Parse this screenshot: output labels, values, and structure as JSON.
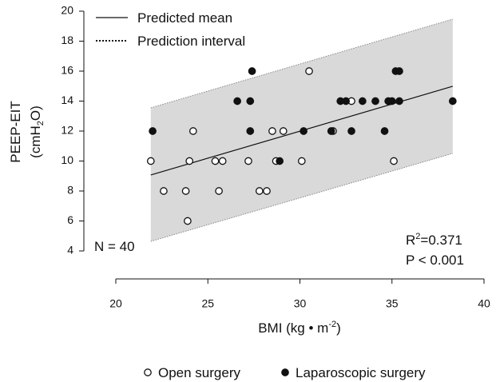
{
  "chart_data": {
    "type": "scatter",
    "y_label": [
      "PEEP-EIT",
      "(cmH",
      "2",
      "O)"
    ],
    "x_label": [
      "BMI (kg • m",
      "-2",
      ")"
    ],
    "annotations": {
      "n": "N = 40",
      "r2": [
        "R",
        "2",
        "=0.371"
      ],
      "p": "P < 0.001"
    },
    "xlim": [
      20,
      40
    ],
    "xticks": [
      20,
      25,
      30,
      35,
      40
    ],
    "ylim": [
      4,
      20
    ],
    "yticks": [
      4,
      6,
      8,
      10,
      12,
      14,
      16,
      18,
      20
    ],
    "series": [
      {
        "name": "Open surgery",
        "marker": "open",
        "color": "#111111",
        "x": [
          21.9,
          22.6,
          23.8,
          23.9,
          24.0,
          24.2,
          25.4,
          25.6,
          25.8,
          27.2,
          27.8,
          28.2,
          28.5,
          28.7,
          29.1,
          30.1,
          30.5,
          31.8,
          32.8,
          35.1
        ],
        "values": [
          10,
          8,
          8,
          6,
          10,
          12,
          10,
          8,
          10,
          10,
          8,
          8,
          12,
          10,
          12,
          10,
          16,
          12,
          14,
          10
        ]
      },
      {
        "name": "Laparoscopic surgery",
        "marker": "filled",
        "color": "#111111",
        "x": [
          22.0,
          26.6,
          27.3,
          27.4,
          27.3,
          28.9,
          30.2,
          31.7,
          32.2,
          32.5,
          32.8,
          33.4,
          34.1,
          34.6,
          34.8,
          35.0,
          35.2,
          35.4,
          35.4,
          38.3
        ],
        "values": [
          12,
          14,
          14,
          16,
          12,
          10,
          12,
          12,
          14,
          14,
          12,
          14,
          14,
          12,
          14,
          14,
          16,
          16,
          14,
          14
        ]
      }
    ],
    "fit": {
      "mean_name": "Predicted mean",
      "interval_name": "Prediction interval",
      "band_color": "#d9d9d9",
      "x": [
        21.9,
        38.3
      ],
      "mean": [
        9.07,
        14.99
      ],
      "lower": [
        4.64,
        10.51
      ],
      "upper": [
        13.55,
        19.47
      ]
    }
  }
}
